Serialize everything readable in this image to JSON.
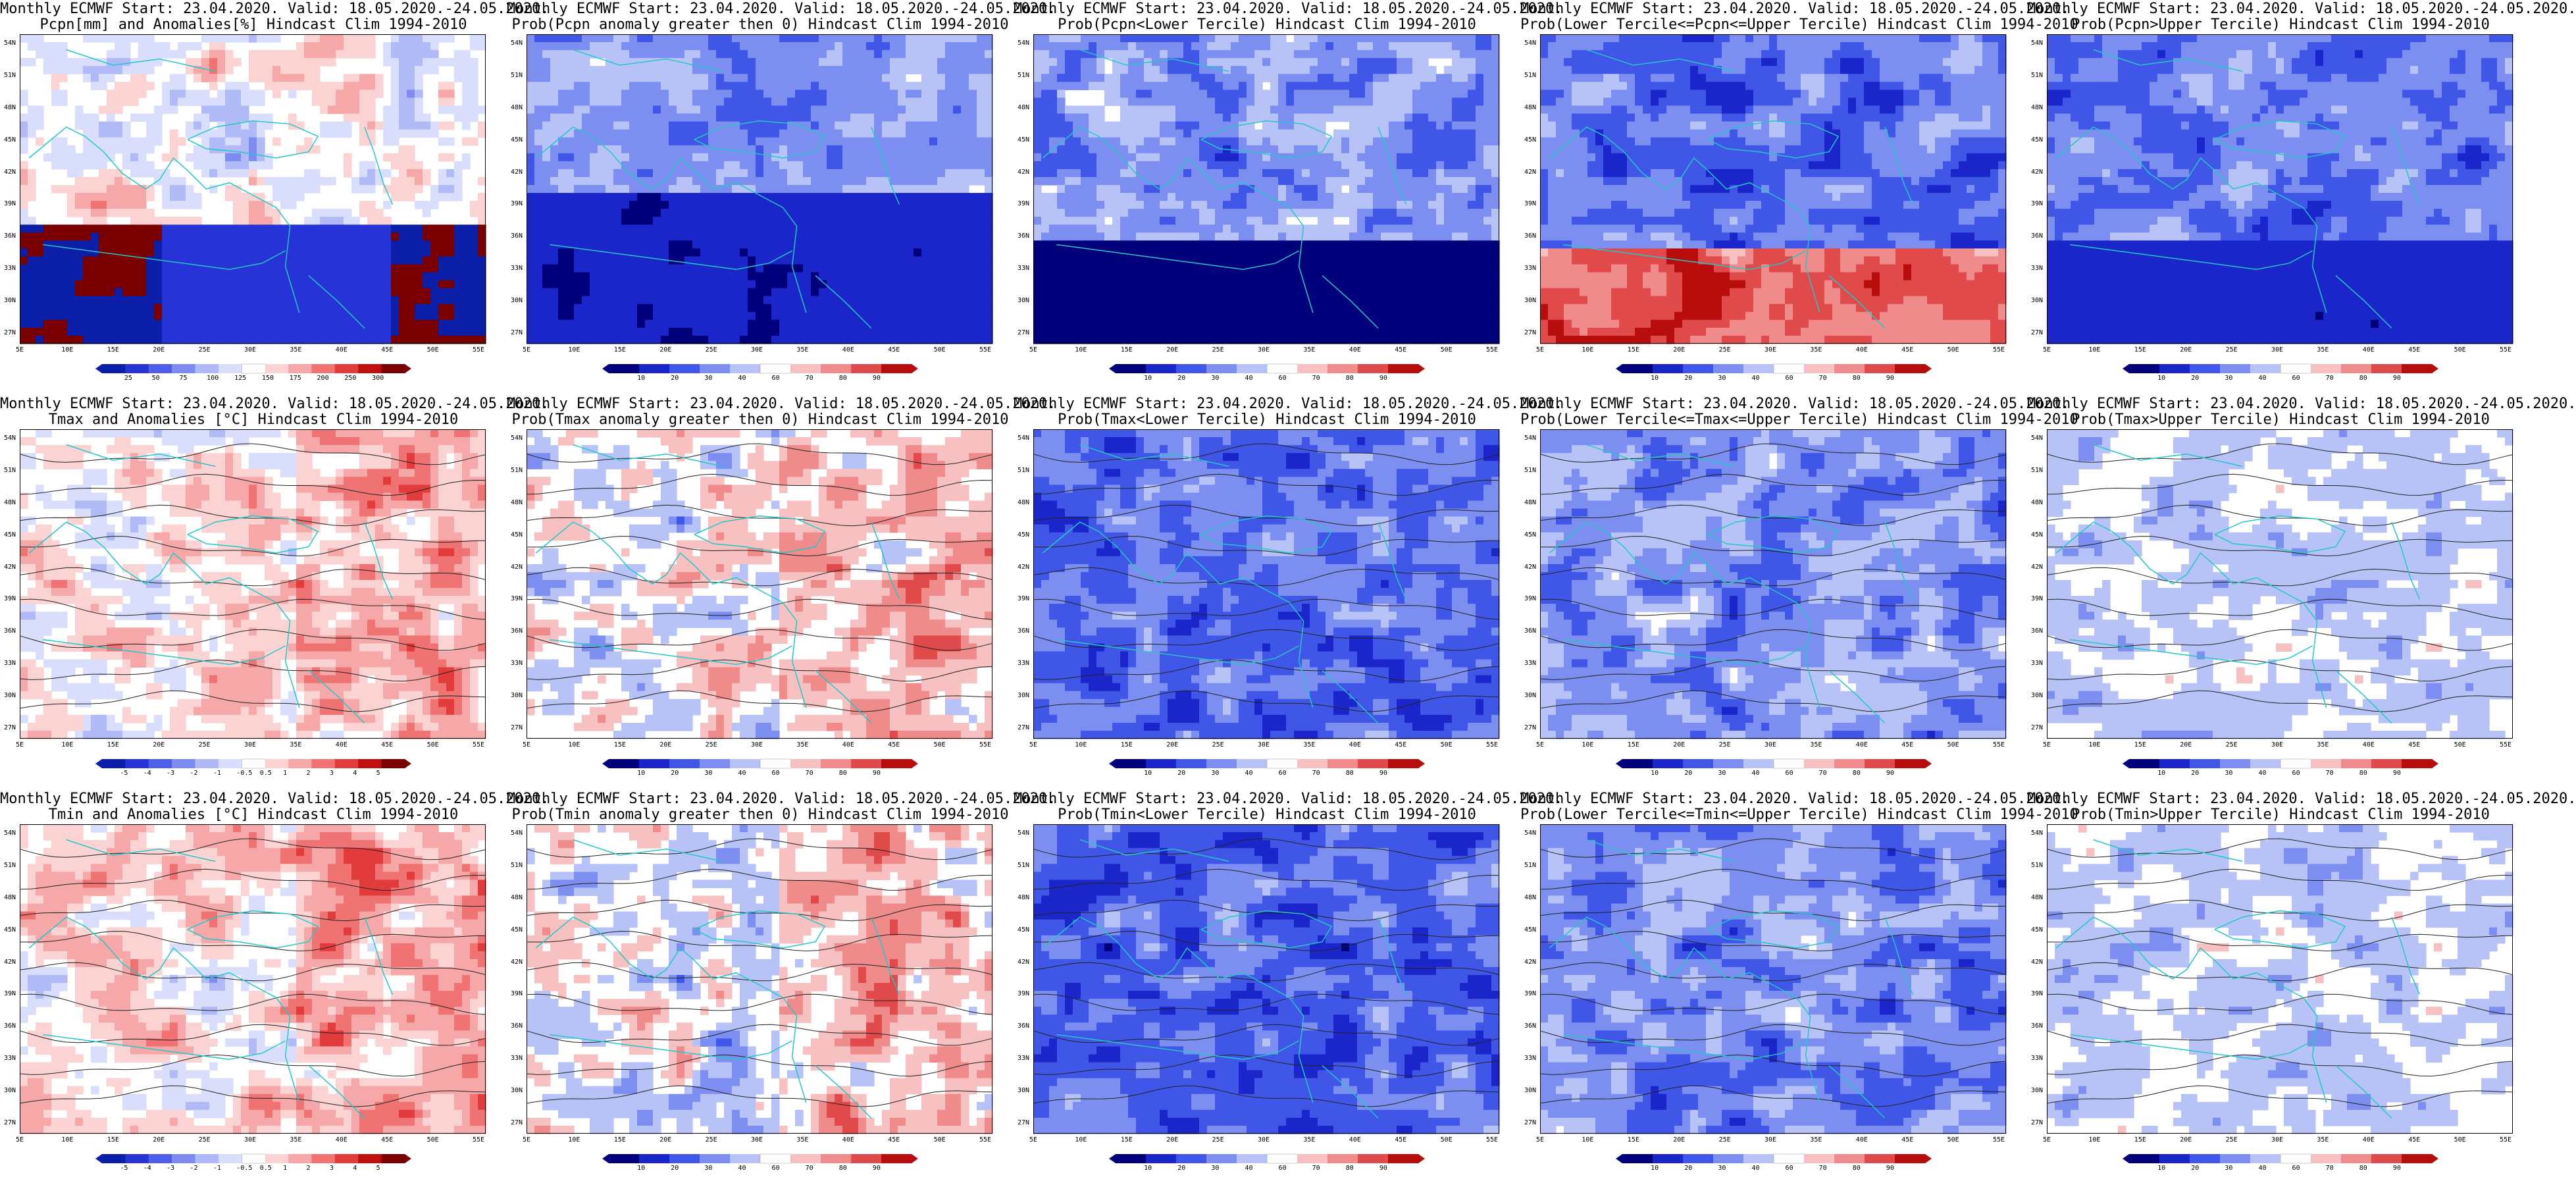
{
  "panels": [
    {
      "title1": "Monthly ECMWF Start: 23.04.2020. Valid: 18.05.2020.-24.05.2020.",
      "title2": "Pcpn[mm] and Anomalies[%] Hindcast Clim 1994-2010",
      "field": "pcpn_anom",
      "cb": [
        "25",
        "50",
        "75",
        "100",
        "125",
        "150",
        "175",
        "200",
        "250",
        "300"
      ]
    },
    {
      "title1": "Monthly ECMWF Start: 23.04.2020. Valid: 18.05.2020.-24.05.2020.",
      "title2": "Prob(Pcpn anomaly greater then 0) Hindcast Clim 1994-2010",
      "field": "prob_gt0",
      "cb": [
        "10",
        "20",
        "30",
        "40",
        "60",
        "70",
        "80",
        "90"
      ]
    },
    {
      "title1": "Monthly ECMWF Start: 23.04.2020. Valid: 18.05.2020.-24.05.2020.",
      "title2": "Prob(Pcpn<Lower Tercile) Hindcast Clim 1994-2010",
      "field": "prob_lower",
      "cb": [
        "10",
        "20",
        "30",
        "40",
        "60",
        "70",
        "80",
        "90"
      ]
    },
    {
      "title1": "Monthly ECMWF Start: 23.04.2020. Valid: 18.05.2020.-24.05.2020.",
      "title2": "Prob(Lower Tercile<=Pcpn<=Upper Tercile) Hindcast Clim 1994-2010",
      "field": "prob_mid",
      "cb": [
        "10",
        "20",
        "30",
        "40",
        "60",
        "70",
        "80",
        "90"
      ]
    },
    {
      "title1": "Monthly ECMWF Start: 23.04.2020. Valid: 18.05.2020.-24.05.2020.",
      "title2": "Prob(Pcpn>Upper Tercile) Hindcast Clim 1994-2010",
      "field": "prob_upper",
      "cb": [
        "10",
        "20",
        "30",
        "40",
        "60",
        "70",
        "80",
        "90"
      ]
    },
    {
      "title1": "Monthly ECMWF Start: 23.04.2020. Valid: 18.05.2020.-24.05.2020.",
      "title2": "Tmax and Anomalies [°C] Hindcast Clim 1994-2010",
      "field": "temp_anom",
      "cb": [
        "-5",
        "-4",
        "-3",
        "-2",
        "-1",
        "-0.5",
        "0.5",
        "1",
        "2",
        "3",
        "4",
        "5"
      ]
    },
    {
      "title1": "Monthly ECMWF Start: 23.04.2020. Valid: 18.05.2020.-24.05.2020.",
      "title2": "Prob(Tmax anomaly greater then 0) Hindcast Clim 1994-2010",
      "field": "temp_gt0",
      "cb": [
        "10",
        "20",
        "30",
        "40",
        "60",
        "70",
        "80",
        "90"
      ]
    },
    {
      "title1": "Monthly ECMWF Start: 23.04.2020. Valid: 18.05.2020.-24.05.2020.",
      "title2": "Prob(Tmax<Lower Tercile) Hindcast Clim 1994-2010",
      "field": "temp_lower",
      "cb": [
        "10",
        "20",
        "30",
        "40",
        "60",
        "70",
        "80",
        "90"
      ]
    },
    {
      "title1": "Monthly ECMWF Start: 23.04.2020. Valid: 18.05.2020.-24.05.2020.",
      "title2": "Prob(Lower Tercile<=Tmax<=Upper Tercile) Hindcast Clim 1994-2010",
      "field": "temp_mid",
      "cb": [
        "10",
        "20",
        "30",
        "40",
        "60",
        "70",
        "80",
        "90"
      ]
    },
    {
      "title1": "Monthly ECMWF Start: 23.04.2020. Valid: 18.05.2020.-24.05.2020.",
      "title2": "Prob(Tmax>Upper Tercile) Hindcast Clim 1994-2010",
      "field": "temp_upper",
      "cb": [
        "10",
        "20",
        "30",
        "40",
        "60",
        "70",
        "80",
        "90"
      ]
    },
    {
      "title1": "Monthly ECMWF Start: 23.04.2020. Valid: 18.05.2020.-24.05.2020.",
      "title2": "Tmin and Anomalies [°C] Hindcast Clim 1994-2010",
      "field": "temp_anom2",
      "cb": [
        "-5",
        "-4",
        "-3",
        "-2",
        "-1",
        "-0.5",
        "0.5",
        "1",
        "2",
        "3",
        "4",
        "5"
      ]
    },
    {
      "title1": "Monthly ECMWF Start: 23.04.2020. Valid: 18.05.2020.-24.05.2020.",
      "title2": "Prob(Tmin anomaly greater then 0) Hindcast Clim 1994-2010",
      "field": "temp_gt0b",
      "cb": [
        "10",
        "20",
        "30",
        "40",
        "60",
        "70",
        "80",
        "90"
      ]
    },
    {
      "title1": "Monthly ECMWF Start: 23.04.2020. Valid: 18.05.2020.-24.05.2020.",
      "title2": "Prob(Tmin<Lower Tercile) Hindcast Clim 1994-2010",
      "field": "temp_lower2",
      "cb": [
        "10",
        "20",
        "30",
        "40",
        "60",
        "70",
        "80",
        "90"
      ]
    },
    {
      "title1": "Monthly ECMWF Start: 23.04.2020. Valid: 18.05.2020.-24.05.2020.",
      "title2": "Prob(Lower Tercile<=Tmin<=Upper Tercile) Hindcast Clim 1994-2010",
      "field": "temp_mid2",
      "cb": [
        "10",
        "20",
        "30",
        "40",
        "60",
        "70",
        "80",
        "90"
      ]
    },
    {
      "title1": "Monthly ECMWF Start: 23.04.2020. Valid: 18.05.2020.-24.05.2020.",
      "title2": "Prob(Tmin>Upper Tercile) Hindcast Clim 1994-2010",
      "field": "temp_upper2",
      "cb": [
        "10",
        "20",
        "30",
        "40",
        "60",
        "70",
        "80",
        "90"
      ]
    }
  ],
  "lat_labels": [
    "54N",
    "51N",
    "48N",
    "45N",
    "42N",
    "39N",
    "36N",
    "33N",
    "30N",
    "27N"
  ],
  "lon_labels": [
    "5E",
    "10E",
    "15E",
    "20E",
    "25E",
    "30E",
    "35E",
    "40E",
    "45E",
    "50E",
    "55E"
  ],
  "colors": {
    "anom_palette": [
      "#0b1ea8",
      "#2633d6",
      "#4d5fe6",
      "#7e8cf0",
      "#b0baf6",
      "#d8defb",
      "#ffffff",
      "#fbd3d3",
      "#f6a8a8",
      "#ef7373",
      "#e23b3b",
      "#c01010",
      "#7a0000"
    ],
    "prob_palette": [
      "#00007a",
      "#1a26c9",
      "#3f56e6",
      "#7c8ff0",
      "#b7c2f7",
      "#ffffff",
      "#f8c1c1",
      "#ef8b8b",
      "#e04a4a",
      "#b80d0d"
    ],
    "coast": "#22c8c8",
    "contour": "#222222"
  }
}
